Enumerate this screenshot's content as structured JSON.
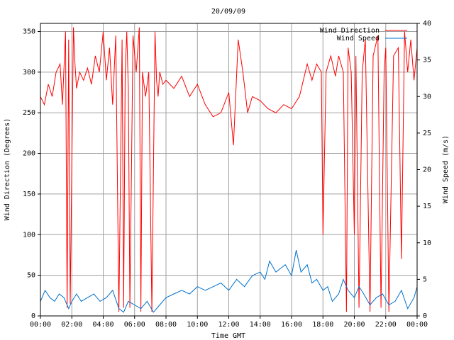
{
  "chart_data": {
    "type": "line",
    "title": "20/09/09",
    "xlabel": "Time GMT",
    "ylabel_left": "Wind Direction (Degrees)",
    "ylabel_right": "Wind Speed (m/s)",
    "x_range": [
      "00:00",
      "24:00"
    ],
    "x_ticks": [
      "00:00",
      "02:00",
      "04:00",
      "06:00",
      "08:00",
      "10:00",
      "12:00",
      "14:00",
      "16:00",
      "18:00",
      "20:00",
      "22:00",
      "00:00"
    ],
    "y_left_range": [
      0,
      360
    ],
    "y_left_ticks": [
      0,
      50,
      100,
      150,
      200,
      250,
      300,
      350
    ],
    "y_right_range": [
      0,
      40
    ],
    "y_right_ticks": [
      0,
      5,
      10,
      15,
      20,
      25,
      30,
      35,
      40
    ],
    "grid": true,
    "legend_position": "top-right",
    "series": [
      {
        "name": "Wind Direction",
        "axis": "left",
        "color": "#ff0000",
        "x_hours": [
          0.0,
          0.25,
          0.5,
          0.75,
          1.0,
          1.25,
          1.4,
          1.6,
          1.7,
          1.8,
          1.9,
          2.1,
          2.2,
          2.3,
          2.5,
          2.75,
          3.0,
          3.25,
          3.5,
          3.75,
          4.0,
          4.2,
          4.4,
          4.6,
          4.8,
          5.0,
          5.2,
          5.3,
          5.4,
          5.5,
          5.6,
          5.7,
          5.9,
          6.1,
          6.3,
          6.4,
          6.5,
          6.7,
          6.9,
          7.1,
          7.3,
          7.4,
          7.5,
          7.6,
          7.8,
          8.0,
          8.5,
          9.0,
          9.5,
          10.0,
          10.5,
          11.0,
          11.5,
          12.0,
          12.3,
          12.6,
          12.9,
          13.2,
          13.5,
          14.0,
          14.5,
          15.0,
          15.5,
          16.0,
          16.5,
          17.0,
          17.3,
          17.6,
          17.9,
          18.0,
          18.2,
          18.5,
          18.8,
          19.0,
          19.3,
          19.5,
          19.6,
          19.8,
          20.0,
          20.1,
          20.3,
          20.5,
          20.7,
          21.0,
          21.2,
          21.5,
          21.7,
          21.9,
          22.0,
          22.2,
          22.5,
          22.8,
          23.0,
          23.2,
          23.4,
          23.6,
          23.8,
          24.0
        ],
        "values": [
          270,
          260,
          285,
          270,
          300,
          310,
          260,
          350,
          10,
          340,
          15,
          355,
          310,
          280,
          300,
          290,
          305,
          285,
          320,
          300,
          350,
          290,
          330,
          260,
          345,
          5,
          340,
          10,
          300,
          350,
          280,
          10,
          345,
          300,
          355,
          5,
          300,
          270,
          300,
          5,
          350,
          290,
          270,
          300,
          285,
          290,
          280,
          295,
          270,
          285,
          260,
          245,
          250,
          275,
          210,
          340,
          300,
          250,
          270,
          265,
          255,
          250,
          260,
          255,
          270,
          310,
          290,
          310,
          300,
          100,
          300,
          320,
          295,
          320,
          300,
          5,
          330,
          300,
          100,
          320,
          10,
          300,
          340,
          5,
          320,
          345,
          10,
          300,
          330,
          5,
          320,
          330,
          70,
          350,
          300,
          340,
          290,
          330
        ]
      },
      {
        "name": "Wind Speed",
        "axis": "right",
        "color": "#0070cc",
        "x_hours": [
          0.0,
          0.3,
          0.6,
          0.9,
          1.2,
          1.5,
          1.8,
          2.0,
          2.3,
          2.6,
          3.0,
          3.4,
          3.8,
          4.2,
          4.6,
          5.0,
          5.3,
          5.6,
          6.0,
          6.4,
          6.8,
          7.2,
          7.6,
          8.0,
          8.5,
          9.0,
          9.5,
          10.0,
          10.5,
          11.0,
          11.5,
          12.0,
          12.5,
          13.0,
          13.5,
          14.0,
          14.3,
          14.6,
          15.0,
          15.3,
          15.6,
          16.0,
          16.3,
          16.6,
          17.0,
          17.3,
          17.6,
          18.0,
          18.3,
          18.6,
          19.0,
          19.3,
          19.6,
          20.0,
          20.3,
          20.6,
          21.0,
          21.4,
          21.8,
          22.2,
          22.6,
          23.0,
          23.4,
          23.8,
          24.0
        ],
        "values": [
          2.0,
          3.5,
          2.5,
          2.0,
          3.0,
          2.5,
          1.0,
          2.0,
          3.0,
          2.0,
          2.5,
          3.0,
          2.0,
          2.5,
          3.5,
          1.0,
          0.5,
          2.0,
          1.5,
          1.0,
          2.0,
          0.5,
          1.5,
          2.5,
          3.0,
          3.5,
          3.0,
          4.0,
          3.5,
          4.0,
          4.5,
          3.5,
          5.0,
          4.0,
          5.5,
          6.0,
          5.0,
          7.5,
          6.0,
          6.5,
          7.0,
          5.5,
          9.0,
          6.0,
          7.0,
          4.5,
          5.0,
          3.5,
          4.0,
          2.0,
          3.0,
          5.0,
          3.5,
          2.5,
          4.0,
          3.0,
          1.5,
          2.5,
          3.0,
          1.5,
          2.0,
          3.5,
          1.0,
          2.5,
          4.0
        ]
      }
    ]
  }
}
